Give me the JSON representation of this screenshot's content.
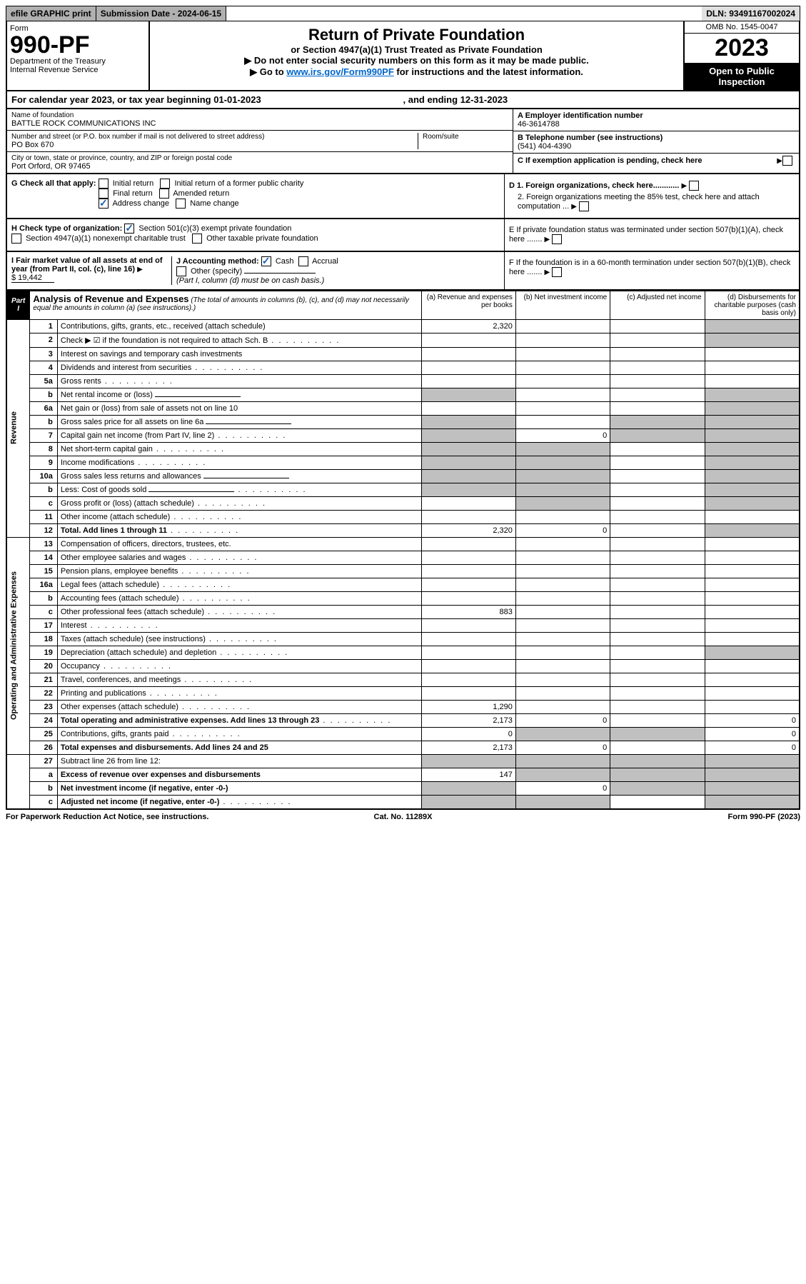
{
  "topbar": {
    "efile": "efile GRAPHIC print",
    "submission": "Submission Date - 2024-06-15",
    "dln": "DLN: 93491167002024"
  },
  "header": {
    "form_label": "Form",
    "form_number": "990-PF",
    "dept": "Department of the Treasury",
    "irs": "Internal Revenue Service",
    "title": "Return of Private Foundation",
    "subtitle": "or Section 4947(a)(1) Trust Treated as Private Foundation",
    "note1": "Do not enter social security numbers on this form as it may be made public.",
    "note2_pre": "Go to ",
    "note2_link": "www.irs.gov/Form990PF",
    "note2_post": " for instructions and the latest information.",
    "omb": "OMB No. 1545-0047",
    "year": "2023",
    "public": "Open to Public Inspection"
  },
  "cal_year": {
    "pre": "For calendar year 2023, or tax year beginning 01-01-2023",
    "end": ", and ending 12-31-2023"
  },
  "entity": {
    "name_label": "Name of foundation",
    "name": "BATTLE ROCK COMMUNICATIONS INC",
    "addr_label": "Number and street (or P.O. box number if mail is not delivered to street address)",
    "addr": "PO Box 670",
    "room_label": "Room/suite",
    "city_label": "City or town, state or province, country, and ZIP or foreign postal code",
    "city": "Port Orford, OR  97465",
    "ein_label": "A Employer identification number",
    "ein": "46-3614788",
    "tel_label": "B Telephone number (see instructions)",
    "tel": "(541) 404-4390",
    "c_label": "C If exemption application is pending, check here"
  },
  "checks": {
    "g_label": "G Check all that apply:",
    "g_items": [
      "Initial return",
      "Initial return of a former public charity",
      "Final return",
      "Amended return",
      "Address change",
      "Name change"
    ],
    "h_label": "H Check type of organization:",
    "h_items": [
      "Section 501(c)(3) exempt private foundation",
      "Section 4947(a)(1) nonexempt charitable trust",
      "Other taxable private foundation"
    ],
    "i_label": "I Fair market value of all assets at end of year (from Part II, col. (c), line 16)",
    "i_val": "$  19,442",
    "j_label": "J Accounting method:",
    "j_items": [
      "Cash",
      "Accrual",
      "Other (specify)"
    ],
    "j_note": "(Part I, column (d) must be on cash basis.)",
    "d1": "D 1. Foreign organizations, check here............",
    "d2": "2. Foreign organizations meeting the 85% test, check here and attach computation ...",
    "e": "E  If private foundation status was terminated under section 507(b)(1)(A), check here .......",
    "f": "F  If the foundation is in a 60-month termination under section 507(b)(1)(B), check here .......",
    "checked": {
      "address_change": true,
      "section_501c3": true,
      "cash": true,
      "sch_b": true
    }
  },
  "part1": {
    "label": "Part I",
    "title": "Analysis of Revenue and Expenses",
    "note": "(The total of amounts in columns (b), (c), and (d) may not necessarily equal the amounts in column (a) (see instructions).)",
    "cols": {
      "a": "(a) Revenue and expenses per books",
      "b": "(b) Net investment income",
      "c": "(c) Adjusted net income",
      "d": "(d) Disbursements for charitable purposes (cash basis only)"
    }
  },
  "lines": [
    {
      "sect": "rev",
      "n": "1",
      "d": "Contributions, gifts, grants, etc., received (attach schedule)",
      "a": "2,320",
      "greyd": true
    },
    {
      "sect": "rev",
      "n": "2",
      "d": "Check ▶ ☑ if the foundation is not required to attach Sch. B",
      "dots": true,
      "nocell": true,
      "greyd": true
    },
    {
      "sect": "rev",
      "n": "3",
      "d": "Interest on savings and temporary cash investments"
    },
    {
      "sect": "rev",
      "n": "4",
      "d": "Dividends and interest from securities",
      "dots": true
    },
    {
      "sect": "rev",
      "n": "5a",
      "d": "Gross rents",
      "dots": true
    },
    {
      "sect": "rev",
      "n": "b",
      "d": "Net rental income or (loss)",
      "inline": true,
      "greya": true,
      "greyd": true
    },
    {
      "sect": "rev",
      "n": "6a",
      "d": "Net gain or (loss) from sale of assets not on line 10",
      "greyd": true
    },
    {
      "sect": "rev",
      "n": "b",
      "d": "Gross sales price for all assets on line 6a",
      "inline": true,
      "greya": true,
      "greyc": true,
      "greyd": true
    },
    {
      "sect": "rev",
      "n": "7",
      "d": "Capital gain net income (from Part IV, line 2)",
      "dots": true,
      "b": "0",
      "greya": true,
      "greyc": true,
      "greyd": true
    },
    {
      "sect": "rev",
      "n": "8",
      "d": "Net short-term capital gain",
      "dots": true,
      "greya": true,
      "greyb": true,
      "greyd": true
    },
    {
      "sect": "rev",
      "n": "9",
      "d": "Income modifications",
      "dots": true,
      "greya": true,
      "greyb": true,
      "greyd": true
    },
    {
      "sect": "rev",
      "n": "10a",
      "d": "Gross sales less returns and allowances",
      "inline": true,
      "greya": true,
      "greyb": true,
      "greyd": true
    },
    {
      "sect": "rev",
      "n": "b",
      "d": "Less: Cost of goods sold",
      "dots": true,
      "inline": true,
      "greya": true,
      "greyb": true,
      "greyd": true
    },
    {
      "sect": "rev",
      "n": "c",
      "d": "Gross profit or (loss) (attach schedule)",
      "dots": true,
      "greyb": true,
      "greyd": true
    },
    {
      "sect": "rev",
      "n": "11",
      "d": "Other income (attach schedule)",
      "dots": true
    },
    {
      "sect": "rev",
      "n": "12",
      "d": "Total. Add lines 1 through 11",
      "dots": true,
      "bold": true,
      "a": "2,320",
      "b": "0",
      "greyd": true
    },
    {
      "sect": "exp",
      "n": "13",
      "d": "Compensation of officers, directors, trustees, etc."
    },
    {
      "sect": "exp",
      "n": "14",
      "d": "Other employee salaries and wages",
      "dots": true
    },
    {
      "sect": "exp",
      "n": "15",
      "d": "Pension plans, employee benefits",
      "dots": true
    },
    {
      "sect": "exp",
      "n": "16a",
      "d": "Legal fees (attach schedule)",
      "dots": true
    },
    {
      "sect": "exp",
      "n": "b",
      "d": "Accounting fees (attach schedule)",
      "dots": true
    },
    {
      "sect": "exp",
      "n": "c",
      "d": "Other professional fees (attach schedule)",
      "dots": true,
      "a": "883"
    },
    {
      "sect": "exp",
      "n": "17",
      "d": "Interest",
      "dots": true
    },
    {
      "sect": "exp",
      "n": "18",
      "d": "Taxes (attach schedule) (see instructions)",
      "dots": true
    },
    {
      "sect": "exp",
      "n": "19",
      "d": "Depreciation (attach schedule) and depletion",
      "dots": true,
      "greyd": true
    },
    {
      "sect": "exp",
      "n": "20",
      "d": "Occupancy",
      "dots": true
    },
    {
      "sect": "exp",
      "n": "21",
      "d": "Travel, conferences, and meetings",
      "dots": true
    },
    {
      "sect": "exp",
      "n": "22",
      "d": "Printing and publications",
      "dots": true
    },
    {
      "sect": "exp",
      "n": "23",
      "d": "Other expenses (attach schedule)",
      "dots": true,
      "a": "1,290"
    },
    {
      "sect": "exp",
      "n": "24",
      "d": "Total operating and administrative expenses. Add lines 13 through 23",
      "dots": true,
      "bold": true,
      "a": "2,173",
      "b": "0",
      "d_val": "0"
    },
    {
      "sect": "exp",
      "n": "25",
      "d": "Contributions, gifts, grants paid",
      "dots": true,
      "a": "0",
      "greyb": true,
      "greyc": true,
      "d_val": "0"
    },
    {
      "sect": "exp",
      "n": "26",
      "d": "Total expenses and disbursements. Add lines 24 and 25",
      "bold": true,
      "a": "2,173",
      "b": "0",
      "d_val": "0"
    },
    {
      "sect": "sum",
      "n": "27",
      "d": "Subtract line 26 from line 12:",
      "greya": true,
      "greyb": true,
      "greyc": true,
      "greyd": true
    },
    {
      "sect": "sum",
      "n": "a",
      "d": "Excess of revenue over expenses and disbursements",
      "bold": true,
      "a": "147",
      "greyb": true,
      "greyc": true,
      "greyd": true
    },
    {
      "sect": "sum",
      "n": "b",
      "d": "Net investment income (if negative, enter -0-)",
      "bold": true,
      "greya": true,
      "b": "0",
      "greyc": true,
      "greyd": true
    },
    {
      "sect": "sum",
      "n": "c",
      "d": "Adjusted net income (if negative, enter -0-)",
      "bold": true,
      "dots": true,
      "greya": true,
      "greyb": true,
      "greyd": true
    }
  ],
  "footer": {
    "left": "For Paperwork Reduction Act Notice, see instructions.",
    "mid": "Cat. No. 11289X",
    "right": "Form 990-PF (2023)"
  },
  "colors": {
    "link": "#0066cc",
    "check": "#1a5fb4",
    "grey_bg": "#c0c0c0"
  }
}
